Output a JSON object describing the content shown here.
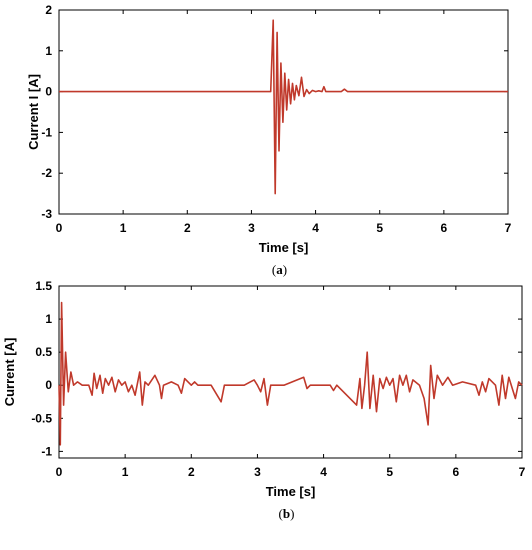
{
  "chart_data": [
    {
      "type": "line",
      "caption": "(a)",
      "xlabel": "Time [s]",
      "ylabel": "Current I [A]",
      "xlim": [
        0,
        7
      ],
      "ylim": [
        -3,
        2
      ],
      "xticks": [
        "0",
        "1",
        "2",
        "3",
        "4",
        "5",
        "6",
        "7"
      ],
      "yticks": [
        "-3",
        "-2",
        "-1",
        "0",
        "1",
        "2"
      ],
      "grid": false,
      "color": "#c0392b",
      "series": [
        {
          "x": [
            0,
            3.3,
            3.34,
            3.37,
            3.4,
            3.43,
            3.46,
            3.49,
            3.52,
            3.55,
            3.58,
            3.61,
            3.64,
            3.67,
            3.7,
            3.74,
            3.78,
            3.82,
            3.86,
            3.9,
            3.95,
            4.0,
            4.05,
            4.1,
            4.13,
            4.16,
            4.2,
            4.4,
            4.45,
            4.5,
            7.0
          ],
          "y": [
            0,
            0,
            1.75,
            -2.5,
            1.45,
            -1.45,
            0.7,
            -0.75,
            0.45,
            -0.45,
            0.3,
            -0.3,
            0.2,
            -0.2,
            0.15,
            -0.1,
            0.35,
            -0.12,
            0.05,
            -0.05,
            0.03,
            0,
            0.02,
            0,
            0.12,
            0,
            0,
            0,
            0.06,
            0,
            0
          ]
        }
      ]
    },
    {
      "type": "line",
      "caption": "(b)",
      "xlabel": "Time [s]",
      "ylabel": "Current [A]",
      "xlim": [
        0,
        7
      ],
      "ylim": [
        -1.1,
        1.5
      ],
      "xticks": [
        "0",
        "1",
        "2",
        "3",
        "4",
        "5",
        "6",
        "7"
      ],
      "yticks": [
        "-1",
        "-0.5",
        "0",
        "0.5",
        "1",
        "1.5"
      ],
      "grid": false,
      "color": "#c0392b",
      "series": [
        {
          "x": [
            0,
            0.02,
            0.04,
            0.07,
            0.1,
            0.14,
            0.18,
            0.22,
            0.28,
            0.35,
            0.45,
            0.5,
            0.53,
            0.57,
            0.62,
            0.66,
            0.7,
            0.75,
            0.8,
            0.85,
            0.9,
            0.95,
            1.0,
            1.05,
            1.1,
            1.15,
            1.22,
            1.26,
            1.3,
            1.35,
            1.45,
            1.52,
            1.55,
            1.58,
            1.7,
            1.8,
            1.85,
            1.9,
            2.0,
            2.05,
            2.1,
            2.3,
            2.45,
            2.5,
            2.55,
            2.8,
            2.95,
            3.0,
            3.05,
            3.1,
            3.15,
            3.2,
            3.4,
            3.7,
            3.75,
            3.8,
            4.1,
            4.15,
            4.2,
            4.5,
            4.55,
            4.58,
            4.62,
            4.66,
            4.7,
            4.75,
            4.8,
            4.85,
            4.9,
            4.95,
            5.0,
            5.05,
            5.1,
            5.15,
            5.2,
            5.25,
            5.3,
            5.35,
            5.45,
            5.52,
            5.58,
            5.62,
            5.67,
            5.72,
            5.8,
            5.88,
            5.95,
            6.1,
            6.3,
            6.35,
            6.4,
            6.45,
            6.5,
            6.6,
            6.65,
            6.7,
            6.75,
            6.8,
            6.9,
            6.95,
            7.0
          ],
          "y": [
            0,
            -0.9,
            1.25,
            -0.3,
            0.5,
            -0.1,
            0.2,
            0,
            0.05,
            0,
            0,
            -0.15,
            0.18,
            -0.05,
            0.15,
            -0.12,
            0.1,
            0,
            0.12,
            -0.1,
            0.08,
            0,
            0.05,
            -0.1,
            0,
            -0.15,
            0.2,
            -0.3,
            0.05,
            0,
            0.15,
            0,
            -0.2,
            0,
            0.05,
            0,
            -0.12,
            0.1,
            0,
            0.05,
            0,
            0,
            -0.25,
            0,
            0,
            0,
            0.08,
            0,
            -0.1,
            0.1,
            -0.3,
            0,
            0,
            0.12,
            -0.05,
            0,
            0,
            -0.08,
            0,
            -0.3,
            0.1,
            -0.35,
            0,
            0.5,
            -0.35,
            0.15,
            -0.4,
            0.1,
            -0.05,
            0.12,
            0,
            0.1,
            -0.25,
            0.15,
            0,
            0.15,
            -0.1,
            0.08,
            0,
            -0.2,
            -0.6,
            0.3,
            -0.2,
            0.15,
            0,
            0.12,
            0,
            0.05,
            0,
            -0.15,
            0.05,
            -0.1,
            0.1,
            0,
            -0.3,
            0.15,
            -0.2,
            0.12,
            -0.2,
            0.05,
            0
          ]
        }
      ]
    }
  ]
}
